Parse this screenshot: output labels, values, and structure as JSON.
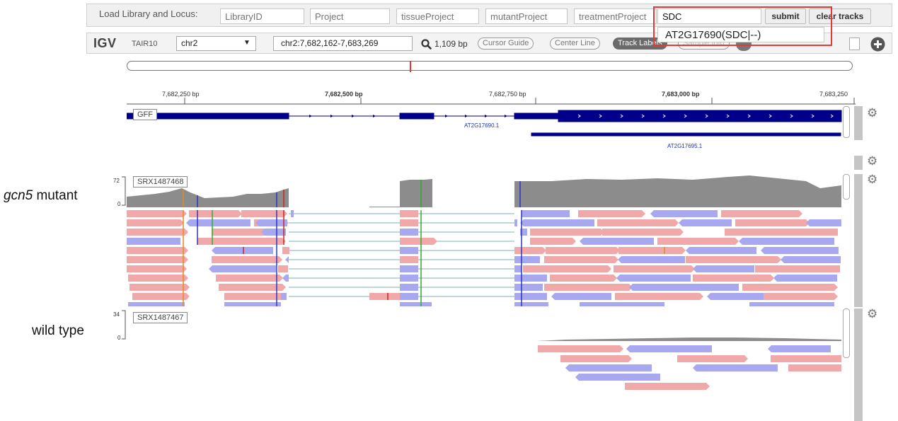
{
  "load_bar": {
    "label": "Load Library and Locus:",
    "fields": [
      {
        "name": "library-id-field",
        "placeholder": "LibraryID"
      },
      {
        "name": "project-field",
        "placeholder": "Project"
      },
      {
        "name": "tissue-project-field",
        "placeholder": "tissueProject"
      },
      {
        "name": "mutant-project-field",
        "placeholder": "mutantProject"
      },
      {
        "name": "treatment-project-field",
        "placeholder": "treatmentProject"
      }
    ],
    "query_value": "SDC",
    "submit_label": "submit",
    "clear_label": "clear tracks",
    "autocomplete_item": "AT2G17690(SDC|--)"
  },
  "igv_bar": {
    "logo": "IGV",
    "genome": "TAIR10",
    "chromosome": "chr2",
    "locus": "chr2:7,682,162-7,683,269",
    "width_label": "1,109 bp",
    "cursor_guide": "Cursor Guide",
    "center_line": "Center Line",
    "track_labels": "Track Labels",
    "hidden_pill": "Sample Info"
  },
  "ruler": {
    "ticks": [
      {
        "label": "7,682,250 bp",
        "bold": false
      },
      {
        "label": "7,682,500 bp",
        "bold": true
      },
      {
        "label": "7,682,750 bp",
        "bold": false
      },
      {
        "label": "7,683,000 bp",
        "bold": true
      },
      {
        "label": "7,683,250",
        "bold": false
      }
    ]
  },
  "gff_track": {
    "name": "GFF",
    "genes": [
      "AT2G17690.1",
      "AT2G17695.1"
    ]
  },
  "tracks": [
    {
      "side_label_italic": "gcn5",
      "side_label_rest": " mutant",
      "sample": "SRX1487468",
      "scale_max": "72",
      "scale_min": "0"
    },
    {
      "side_label_italic": "",
      "side_label_rest": "wild type",
      "sample": "SRX1487467",
      "scale_max": "34",
      "scale_min": "0"
    }
  ],
  "colors": {
    "feature": "#00008b",
    "read_forward": "#f0a8a8",
    "read_reverse": "#a8a8f0",
    "coverage": "#8c8c8c",
    "highlight": "#e53935"
  }
}
